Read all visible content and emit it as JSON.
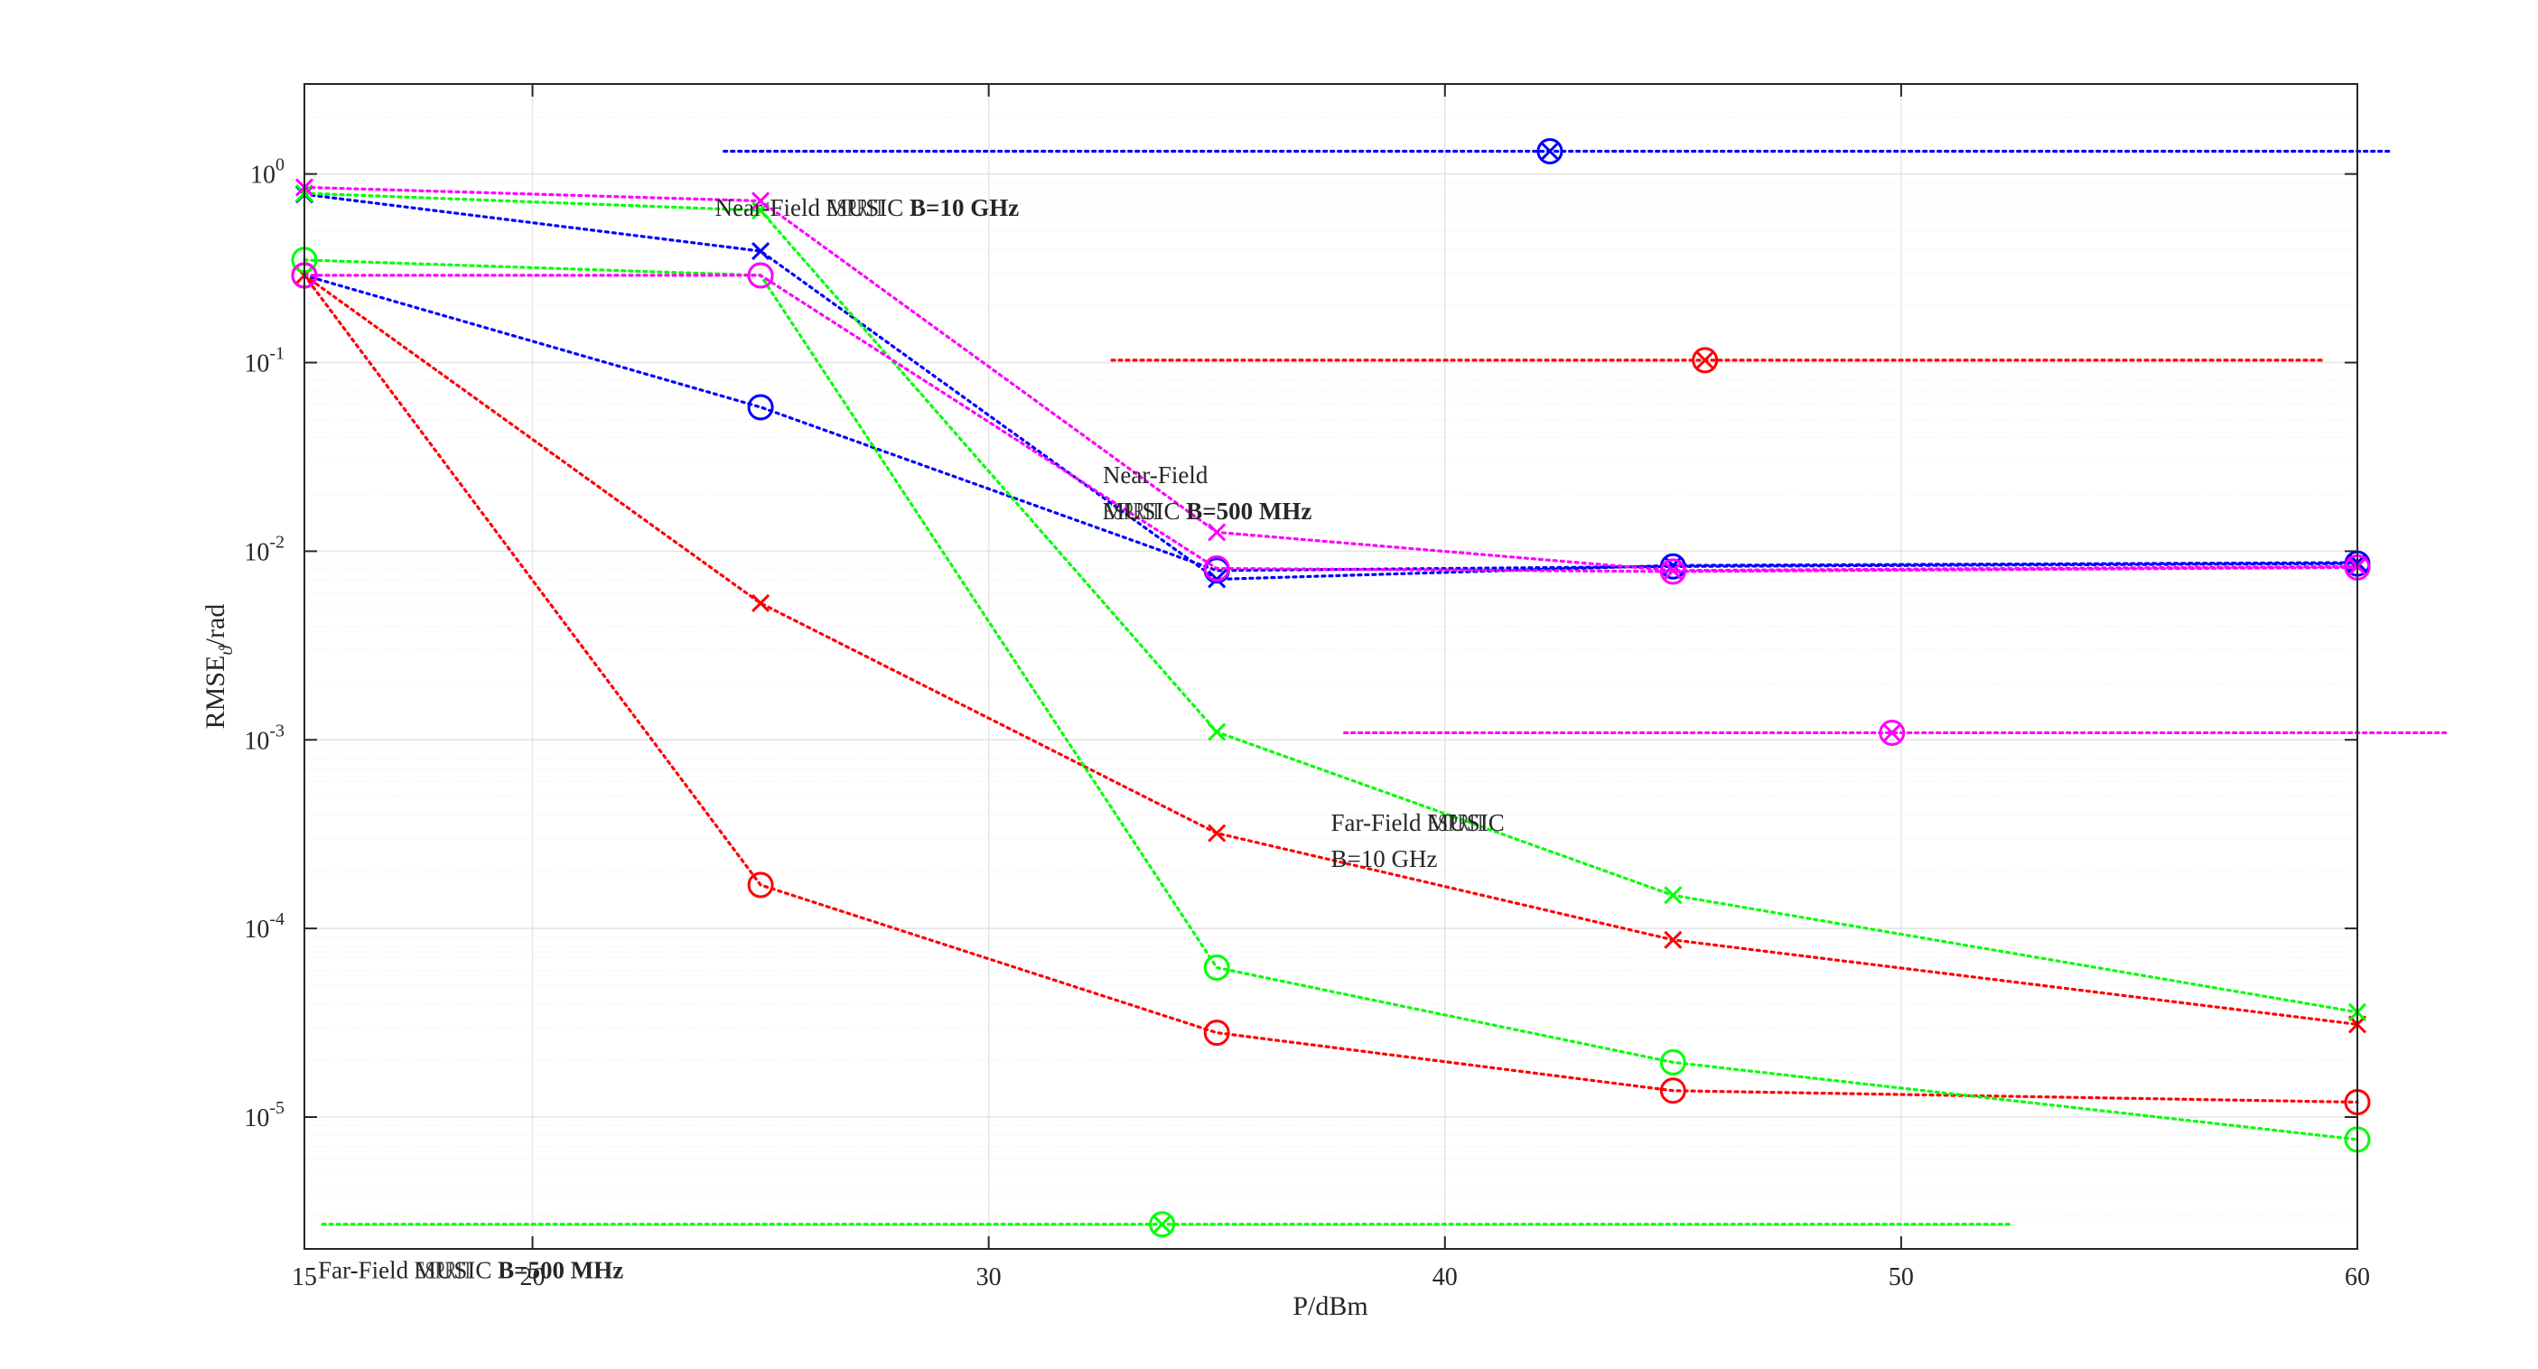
{
  "chart_data": {
    "type": "line",
    "xlabel": "P/dBm",
    "ylabel": "RMSE",
    "ylabel_sub": "ϑ",
    "ylabel_unit": "/rad",
    "yscale": "log",
    "xlim": [
      15,
      60
    ],
    "ylim": [
      2e-06,
      3
    ],
    "xticks": [
      15,
      20,
      30,
      40,
      50,
      60
    ],
    "xtick_labels": [
      "15",
      "20",
      "30",
      "40",
      "50",
      "60"
    ],
    "yticks": [
      1,
      0.1,
      0.01,
      0.001,
      0.0001,
      1e-05
    ],
    "ytick_labels": [
      {
        "base": "10",
        "exp": "0"
      },
      {
        "base": "10",
        "exp": "-1"
      },
      {
        "base": "10",
        "exp": "-2"
      },
      {
        "base": "10",
        "exp": "-3"
      },
      {
        "base": "10",
        "exp": "-4"
      },
      {
        "base": "10",
        "exp": "-5"
      }
    ],
    "grid": true,
    "x": [
      15,
      25,
      35,
      45,
      60
    ],
    "series": [
      {
        "color": "#0000ff",
        "marker": "o",
        "values": [
          0.29,
          0.058,
          0.0079,
          0.0083,
          0.0086
        ]
      },
      {
        "color": "#0000ff",
        "marker": "x",
        "values": [
          0.78,
          0.39,
          0.0071,
          0.0084,
          0.0087
        ]
      },
      {
        "color": "#ff0000",
        "marker": "o",
        "values": [
          0.29,
          0.00017,
          2.8e-05,
          1.38e-05,
          1.2e-05
        ]
      },
      {
        "color": "#ff0000",
        "marker": "x",
        "values": [
          0.29,
          0.0053,
          0.00032,
          8.7e-05,
          3.1e-05
        ]
      },
      {
        "color": "#00ff00",
        "marker": "o",
        "values": [
          0.35,
          0.29,
          6.2e-05,
          1.95e-05,
          7.6e-06
        ]
      },
      {
        "color": "#00ff00",
        "marker": "x",
        "values": [
          0.79,
          0.64,
          0.0011,
          0.00015,
          3.6e-05
        ]
      },
      {
        "color": "#ff00ff",
        "marker": "o",
        "values": [
          0.29,
          0.29,
          0.0081,
          0.0078,
          0.0082
        ]
      },
      {
        "color": "#ff00ff",
        "marker": "x",
        "values": [
          0.85,
          0.72,
          0.0126,
          0.0079,
          0.0083
        ]
      }
    ],
    "reference_lines": [
      {
        "color": "#0000ff",
        "y": 1.32,
        "x_range": [
          24.2,
          60.7
        ],
        "marker_x": 42.3
      },
      {
        "color": "#ff0000",
        "y": 0.103,
        "x_range": [
          32.7,
          59.3
        ],
        "marker_x": 45.7
      },
      {
        "color": "#ff00ff",
        "y": 0.00109,
        "x_range": [
          37.8,
          62.0
        ],
        "marker_x": 49.8
      },
      {
        "color": "#00ff00",
        "y": 2.7e-06,
        "x_range": [
          15.4,
          52.4
        ],
        "marker_x": 33.8
      }
    ],
    "annotations": [
      {
        "x": 24.0,
        "y": 0.6,
        "lines": [
          [
            {
              "t": "Near-Field  ",
              "b": false
            },
            {
              "t": "MUSIC",
              "b": false,
              "overlay": "ESPRIT"
            },
            {
              "t": " B=10 GHz",
              "b": true
            }
          ]
        ]
      },
      {
        "x": 32.5,
        "y": 0.023,
        "lines": [
          [
            {
              "t": "Near-Field",
              "b": false
            }
          ],
          [
            {
              "t": "MUSIC",
              "b": false,
              "overlay": "ESPRIT"
            },
            {
              "t": " B=500 MHz",
              "b": true
            }
          ]
        ]
      },
      {
        "x": 37.5,
        "y": 0.00033,
        "lines": [
          [
            {
              "t": "Far-Field  ",
              "b": false
            },
            {
              "t": "MUSIC",
              "b": false,
              "overlay": "ESPRIT"
            }
          ],
          [
            {
              "t": "B=10 GHz",
              "b": false
            }
          ]
        ]
      },
      {
        "x": 15.3,
        "y": 1.4e-06,
        "lines": [
          [
            {
              "t": "Far-Field  ",
              "b": false
            },
            {
              "t": "MUSIC",
              "b": false,
              "overlay": "ESPRIT"
            },
            {
              "t": " B=500 MHz",
              "b": true
            }
          ]
        ]
      }
    ]
  }
}
